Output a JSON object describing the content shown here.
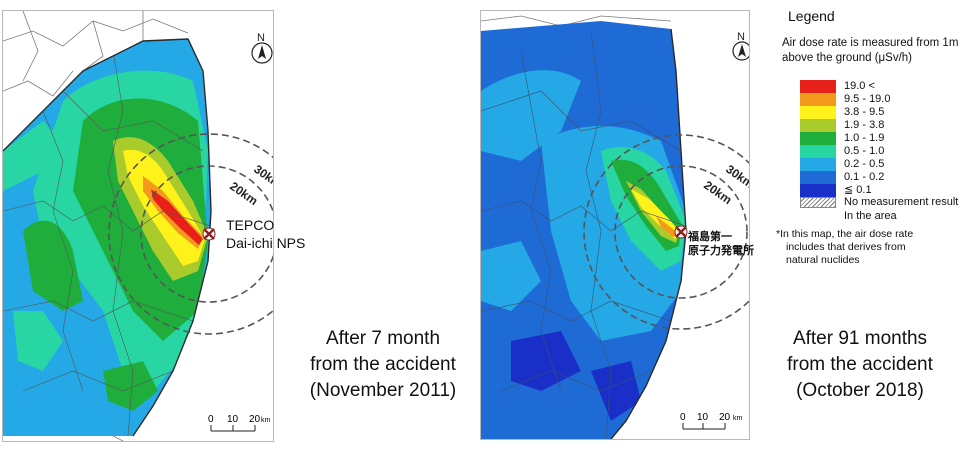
{
  "maps": [
    {
      "npp_label_lines": [
        "TEPCO",
        "Dai-ichi NPS"
      ],
      "ring_labels": [
        "30km",
        "20km"
      ],
      "north_label": "N",
      "scale_labels": [
        "0",
        "10",
        "20",
        "km"
      ],
      "caption_lines": [
        "After 7 month",
        "from the accident",
        "(November 2011)"
      ]
    },
    {
      "npp_label_lines": [
        "福島第一",
        "原子力発電所"
      ],
      "ring_labels": [
        "30km",
        "20km"
      ],
      "north_label": "N",
      "scale_labels": [
        "0",
        "10",
        "20",
        "km"
      ],
      "caption_lines": [
        "After 91 months",
        "from the accident",
        "(October 2018)"
      ]
    }
  ],
  "legend": {
    "title": "Legend",
    "description": "Air dose rate is measured from 1m above the ground (μSv/h)",
    "rows": [
      {
        "range": "19.0  <",
        "color": "#e8201a"
      },
      {
        "range": "9.5  -  19.0",
        "color": "#f39a1c"
      },
      {
        "range": "3.8  -  9.5",
        "color": "#fff21a"
      },
      {
        "range": "1.9  -  3.8",
        "color": "#a9cc2c"
      },
      {
        "range": "1.0  -  1.9",
        "color": "#1fae3c"
      },
      {
        "range": "0.5  -  1.0",
        "color": "#27d6a3"
      },
      {
        "range": "0.2  -  0.5",
        "color": "#24a9e6"
      },
      {
        "range": "0.1  -  0.2",
        "color": "#1f6bd6"
      },
      {
        "range": "≦  0.1",
        "color": "#1a2fc8"
      }
    ],
    "no_measurement_lines": [
      "No measurement result",
      "In the area"
    ],
    "note_lines": [
      "*In this map, the air dose rate",
      "includes that derives from",
      "natural nuclides"
    ]
  }
}
